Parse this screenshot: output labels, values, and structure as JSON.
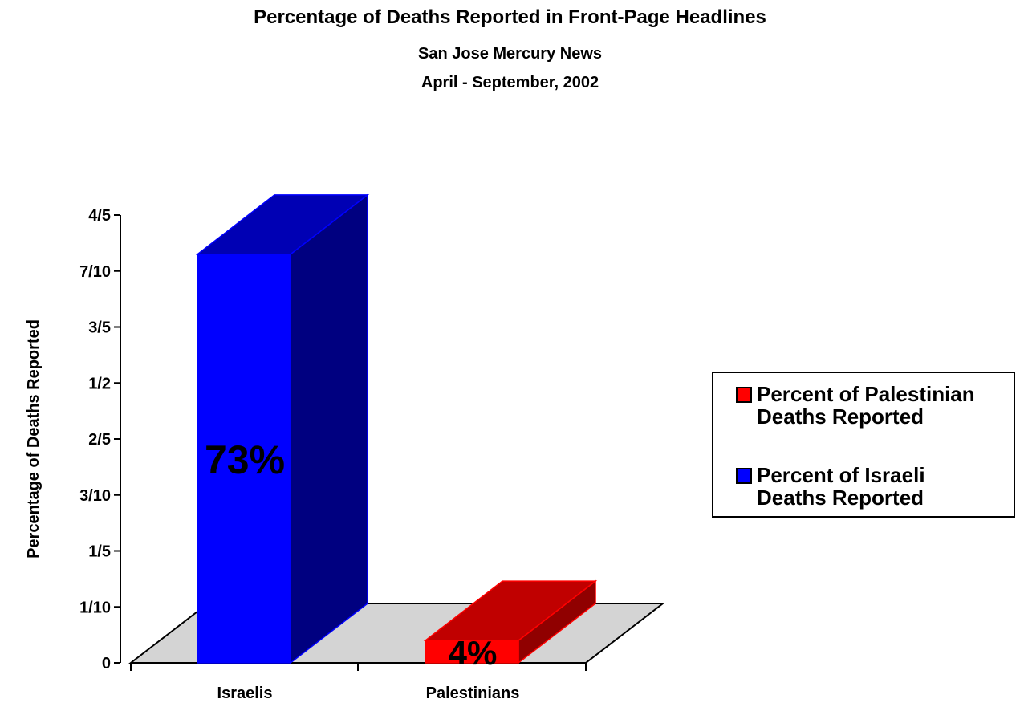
{
  "header": {
    "title": "Percentage of Deaths Reported in Front-Page Headlines",
    "subtitle": "San Jose Mercury News",
    "date_range": "April - September, 2002"
  },
  "legend": [
    {
      "label": "Percent of Palestinian Deaths Reported",
      "color": "#ff0000"
    },
    {
      "label": "Percent of Israeli Deaths Reported",
      "color": "#0000ff"
    }
  ],
  "chart_data": {
    "type": "bar",
    "title": "Percentage of Deaths Reported in Front-Page Headlines",
    "subtitle": "San Jose Mercury News April - September, 2002",
    "xlabel": "",
    "ylabel": "Percentage of Deaths Reported",
    "categories": [
      "Israelis",
      "Palestinians"
    ],
    "series": [
      {
        "name": "Percent of Israeli Deaths Reported",
        "values": [
          0.73,
          null
        ],
        "color": "#0000ff",
        "label": "73%"
      },
      {
        "name": "Percent of Palestinian Deaths Reported",
        "values": [
          null,
          0.04
        ],
        "color": "#ff0000",
        "label": "4%"
      }
    ],
    "yticks": [
      "0",
      "1/10",
      "1/5",
      "3/10",
      "2/5",
      "1/2",
      "3/5",
      "7/10",
      "4/5"
    ],
    "ylim": [
      0,
      0.8
    ],
    "grid": false,
    "legend_position": "right",
    "three_d": true
  }
}
